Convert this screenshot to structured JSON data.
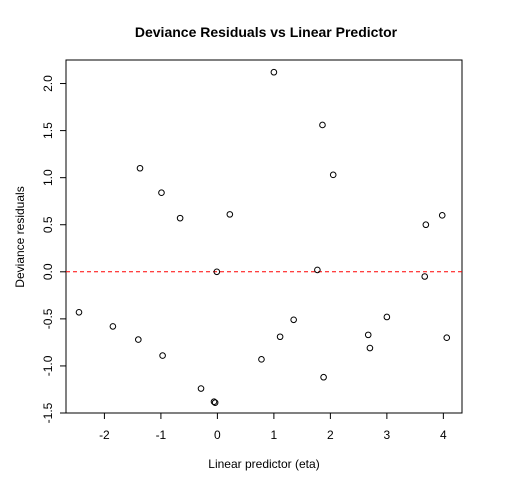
{
  "chart_data": {
    "type": "scatter",
    "title": "Deviance Residuals vs Linear Predictor",
    "xlabel": "Linear predictor (eta)",
    "ylabel": "Deviance residuals",
    "xlim": [
      -2.68,
      4.33
    ],
    "ylim": [
      -1.5,
      2.25
    ],
    "xticks": [
      -2,
      -1,
      0,
      1,
      2,
      3,
      4
    ],
    "xtick_labels": [
      "-2",
      "-1",
      "0",
      "1",
      "2",
      "3",
      "4"
    ],
    "yticks": [
      -1.5,
      -1.0,
      -0.5,
      0.0,
      0.5,
      1.0,
      1.5,
      2.0
    ],
    "ytick_labels": [
      "-1.5",
      "-1.0",
      "-0.5",
      "0.0",
      "0.5",
      "1.0",
      "1.5",
      "2.0"
    ],
    "grid": false,
    "legend": "none",
    "reference_line": {
      "y": 0.0,
      "color": "#ff0000",
      "style": "dashed"
    },
    "point_color": "#000000",
    "points": [
      {
        "x": -2.45,
        "y": -0.43
      },
      {
        "x": -1.85,
        "y": -0.58
      },
      {
        "x": -1.4,
        "y": -0.72
      },
      {
        "x": -1.37,
        "y": 1.1
      },
      {
        "x": -0.99,
        "y": 0.84
      },
      {
        "x": -0.97,
        "y": -0.89
      },
      {
        "x": -0.66,
        "y": 0.57
      },
      {
        "x": -0.29,
        "y": -1.24
      },
      {
        "x": -0.06,
        "y": -1.38
      },
      {
        "x": -0.04,
        "y": -1.39
      },
      {
        "x": -0.01,
        "y": 0.0
      },
      {
        "x": 0.22,
        "y": 0.61
      },
      {
        "x": 0.78,
        "y": -0.93
      },
      {
        "x": 1.0,
        "y": 2.12
      },
      {
        "x": 1.11,
        "y": -0.69
      },
      {
        "x": 1.35,
        "y": -0.51
      },
      {
        "x": 1.77,
        "y": 0.02
      },
      {
        "x": 1.86,
        "y": 1.56
      },
      {
        "x": 1.88,
        "y": -1.12
      },
      {
        "x": 2.05,
        "y": 1.03
      },
      {
        "x": 2.67,
        "y": -0.67
      },
      {
        "x": 2.7,
        "y": -0.81
      },
      {
        "x": 3.0,
        "y": -0.48
      },
      {
        "x": 3.67,
        "y": -0.05
      },
      {
        "x": 3.69,
        "y": 0.5
      },
      {
        "x": 3.98,
        "y": 0.6
      },
      {
        "x": 4.06,
        "y": -0.7
      }
    ]
  }
}
